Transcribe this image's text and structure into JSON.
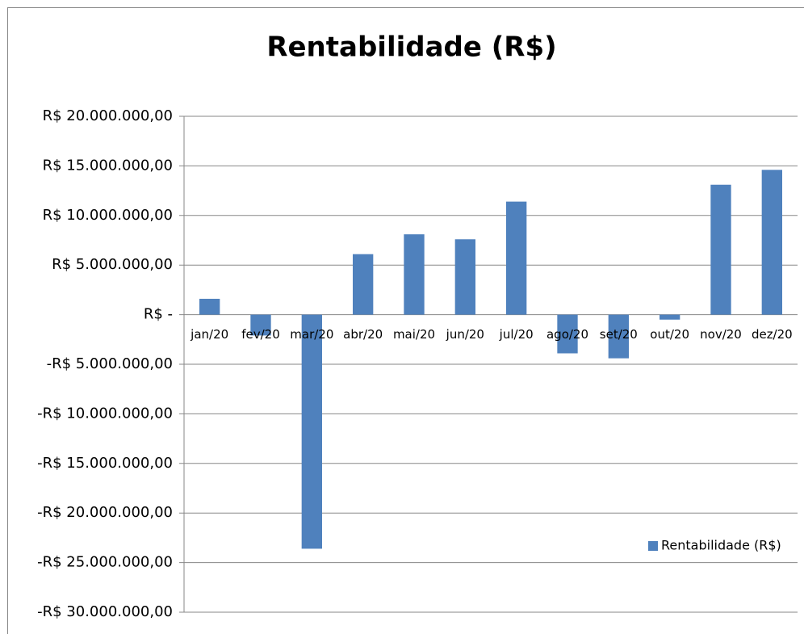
{
  "chart_data": {
    "type": "bar",
    "title": "Rentabilidade (R$)",
    "categories": [
      "jan/20",
      "fev/20",
      "mar/20",
      "abr/20",
      "mai/20",
      "jun/20",
      "jul/20",
      "ago/20",
      "set/20",
      "out/20",
      "nov/20",
      "dez/20"
    ],
    "series": [
      {
        "name": "Rentabilidade (R$)",
        "color": "#4f81bd",
        "values": [
          1600000,
          -2100000,
          -23600000,
          6100000,
          8100000,
          7600000,
          11400000,
          -3900000,
          -4400000,
          -500000,
          13100000,
          14600000
        ]
      }
    ],
    "ylim": [
      -30000000,
      20000000
    ],
    "yticks": [
      {
        "value": 20000000,
        "label": "R$ 20.000.000,00"
      },
      {
        "value": 15000000,
        "label": "R$ 15.000.000,00"
      },
      {
        "value": 10000000,
        "label": "R$ 10.000.000,00"
      },
      {
        "value": 5000000,
        "label": "R$ 5.000.000,00"
      },
      {
        "value": 0,
        "label": "R$ -"
      },
      {
        "value": -5000000,
        "label": "-R$ 5.000.000,00"
      },
      {
        "value": -10000000,
        "label": "-R$ 10.000.000,00"
      },
      {
        "value": -15000000,
        "label": "-R$ 15.000.000,00"
      },
      {
        "value": -20000000,
        "label": "-R$ 20.000.000,00"
      },
      {
        "value": -25000000,
        "label": "-R$ 25.000.000,00"
      },
      {
        "value": -30000000,
        "label": "-R$ 30.000.000,00"
      }
    ],
    "grid": true,
    "legend": "right"
  }
}
